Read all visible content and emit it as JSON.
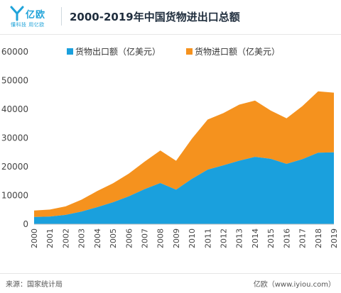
{
  "header": {
    "logo_text": "亿欧",
    "logo_tagline": "懂科技 用亿欧",
    "title": "2000-2019年中国货物进出口总额"
  },
  "footer": {
    "source": "来源：国家统计局",
    "credit": "亿欧（www.iyiou.com）"
  },
  "colors": {
    "export": "#1aa0dd",
    "import": "#f5921e",
    "brand": "#1fa3d9"
  },
  "chart_data": {
    "type": "area",
    "stacked": true,
    "title": "",
    "xlabel": "",
    "ylabel": "",
    "ylim": [
      0,
      60000
    ],
    "yticks": [
      0,
      10000,
      20000,
      30000,
      40000,
      50000,
      60000
    ],
    "ytick_labels": [
      "0",
      "10000",
      "20000",
      "30000",
      "40000",
      "50000",
      "60000"
    ],
    "grid": false,
    "legend_position": "top",
    "x": [
      "2000",
      "2001",
      "2002",
      "2003",
      "2004",
      "2005",
      "2006",
      "2007",
      "2008",
      "2009",
      "2010",
      "2011",
      "2012",
      "2013",
      "2014",
      "2015",
      "2016",
      "2017",
      "2018",
      "2019"
    ],
    "series": [
      {
        "name": "货物出口额（亿美元）",
        "color": "#1aa0dd",
        "values": [
          2492,
          2661,
          3256,
          4382,
          5933,
          7620,
          9690,
          12201,
          14307,
          12016,
          15778,
          18984,
          20487,
          22090,
          23423,
          22735,
          20976,
          22633,
          24867,
          24990
        ]
      },
      {
        "name": "货物进口额（亿美元）",
        "color": "#f5921e",
        "values": [
          2251,
          2436,
          2952,
          4128,
          5612,
          6600,
          7915,
          9561,
          11326,
          10059,
          13962,
          17435,
          18184,
          19500,
          19592,
          16796,
          15879,
          18438,
          21357,
          20771
        ]
      }
    ]
  }
}
